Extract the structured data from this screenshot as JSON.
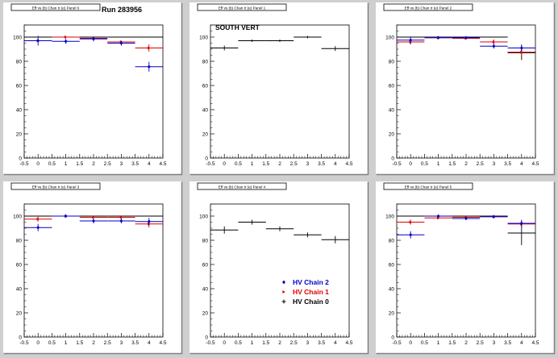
{
  "run_label": "Run 283956",
  "chart_data": [
    {
      "type": "scatter",
      "title": "Eff vs (b) Chan tr (e) Panel 0",
      "annotation": "",
      "xlim": [
        -0.5,
        4.5
      ],
      "ylim": [
        0,
        110
      ],
      "xticks": [
        "-0.5",
        "0",
        "0.5",
        "1",
        "1.5",
        "2",
        "2.5",
        "3",
        "3.5",
        "4",
        "4.5"
      ],
      "yticks": [
        "0",
        "20",
        "40",
        "60",
        "80",
        "100"
      ],
      "series": [
        {
          "color": "#000000",
          "x": [
            0,
            1,
            2,
            3,
            4
          ],
          "values": [
            100,
            100,
            100,
            100,
            100
          ],
          "err": [
            0,
            0,
            0,
            0,
            0
          ]
        },
        {
          "color": "#dd0000",
          "x": [
            0,
            1,
            2,
            3,
            4
          ],
          "values": [
            97,
            100,
            99,
            96,
            91
          ],
          "err": [
            1,
            1,
            1,
            1,
            3
          ]
        },
        {
          "color": "#0000cc",
          "x": [
            0,
            1,
            2,
            3,
            4
          ],
          "values": [
            97,
            96.5,
            98.5,
            95,
            75.5
          ],
          "err": [
            4,
            2,
            2,
            2,
            4
          ]
        }
      ]
    },
    {
      "type": "scatter",
      "title": "Eff vs (b) Chan tr (e) Panel 1",
      "annotation": "SOUTH VERT",
      "xlim": [
        -0.5,
        4.5
      ],
      "ylim": [
        0,
        110
      ],
      "xticks": [
        "-0.5",
        "0",
        "0.5",
        "1",
        "1.5",
        "2",
        "2.5",
        "3",
        "3.5",
        "4",
        "4.5"
      ],
      "yticks": [
        "0",
        "20",
        "40",
        "60",
        "80",
        "100"
      ],
      "series": [
        {
          "color": "#000000",
          "x": [
            0,
            1,
            2,
            3,
            4
          ],
          "values": [
            91,
            97,
            97,
            100,
            90.5
          ],
          "err": [
            2,
            1,
            1,
            1,
            2
          ]
        }
      ]
    },
    {
      "type": "scatter",
      "title": "Eff vs (b) Chan tr (e) Panel 2",
      "annotation": "",
      "xlim": [
        -0.5,
        4.5
      ],
      "ylim": [
        0,
        110
      ],
      "xticks": [
        "-0.5",
        "0",
        "0.5",
        "1",
        "1.5",
        "2",
        "2.5",
        "3",
        "3.5",
        "4",
        "4.5"
      ],
      "yticks": [
        "0",
        "20",
        "40",
        "60",
        "80",
        "100"
      ],
      "series": [
        {
          "color": "#000000",
          "x": [
            0,
            1,
            2,
            3,
            4
          ],
          "values": [
            100,
            100,
            100,
            100,
            87
          ],
          "err": [
            0,
            0,
            0,
            0,
            6
          ]
        },
        {
          "color": "#dd0000",
          "x": [
            0,
            1,
            2,
            3,
            4
          ],
          "values": [
            96,
            99.5,
            99,
            96,
            87.5
          ],
          "err": [
            2,
            1,
            1,
            2,
            3
          ]
        },
        {
          "color": "#0000cc",
          "x": [
            0,
            1,
            2,
            3,
            4
          ],
          "values": [
            97.5,
            99.5,
            99.5,
            92.5,
            91
          ],
          "err": [
            3,
            1,
            1,
            2,
            3
          ]
        }
      ]
    },
    {
      "type": "scatter",
      "title": "Eff vs (b) Chan tr (e) Panel 3",
      "annotation": "",
      "xlim": [
        -0.5,
        4.5
      ],
      "ylim": [
        0,
        110
      ],
      "xticks": [
        "-0.5",
        "0",
        "0.5",
        "1",
        "1.5",
        "2",
        "2.5",
        "3",
        "3.5",
        "4",
        "4.5"
      ],
      "yticks": [
        "0",
        "20",
        "40",
        "60",
        "80",
        "100"
      ],
      "series": [
        {
          "color": "#000000",
          "x": [
            0,
            1,
            2,
            3,
            4
          ],
          "values": [
            100,
            100,
            100,
            100,
            100
          ],
          "err": [
            0,
            0,
            0,
            0,
            0
          ]
        },
        {
          "color": "#dd0000",
          "x": [
            0,
            1,
            2,
            3,
            4
          ],
          "values": [
            97.5,
            100,
            99,
            99,
            93.5
          ],
          "err": [
            2,
            1,
            1,
            1,
            3
          ]
        },
        {
          "color": "#0000cc",
          "x": [
            0,
            1,
            2,
            3,
            4
          ],
          "values": [
            90.5,
            100,
            96,
            96,
            95.5
          ],
          "err": [
            3,
            1,
            2,
            2,
            3
          ]
        }
      ]
    },
    {
      "type": "scatter",
      "title": "Eff vs (b) Chan tr (e) Panel 4",
      "annotation": "",
      "xlim": [
        -0.5,
        4.5
      ],
      "ylim": [
        0,
        110
      ],
      "xticks": [
        "-0.5",
        "0",
        "0.5",
        "1",
        "1.5",
        "2",
        "2.5",
        "3",
        "3.5",
        "4",
        "4.5"
      ],
      "yticks": [
        "0",
        "20",
        "40",
        "60",
        "80",
        "100"
      ],
      "legend": [
        {
          "label": "HV Chain 2",
          "color": "#0000cc",
          "marker": "diamond"
        },
        {
          "label": "HV Chain 1",
          "color": "#dd0000",
          "marker": "arrow"
        },
        {
          "label": "HV Chain 0",
          "color": "#000000",
          "marker": "cross"
        }
      ],
      "series": [
        {
          "color": "#000000",
          "x": [
            0,
            1,
            2,
            3,
            4
          ],
          "values": [
            88.5,
            95,
            89.5,
            84.5,
            80.5
          ],
          "err": [
            3,
            2,
            2,
            2,
            3
          ]
        }
      ]
    },
    {
      "type": "scatter",
      "title": "Eff vs (b) Chan tr (e) Panel 5",
      "annotation": "",
      "xlim": [
        -0.5,
        4.5
      ],
      "ylim": [
        0,
        110
      ],
      "xticks": [
        "-0.5",
        "0",
        "0.5",
        "1",
        "1.5",
        "2",
        "2.5",
        "3",
        "3.5",
        "4",
        "4.5"
      ],
      "yticks": [
        "0",
        "20",
        "40",
        "60",
        "80",
        "100"
      ],
      "series": [
        {
          "color": "#000000",
          "x": [
            0,
            1,
            2,
            3,
            4
          ],
          "values": [
            100,
            100,
            100,
            100,
            86
          ],
          "err": [
            0,
            0,
            0,
            0,
            10
          ]
        },
        {
          "color": "#dd0000",
          "x": [
            0,
            1,
            2,
            3,
            4
          ],
          "values": [
            95,
            98.5,
            99,
            99.5,
            93.5
          ],
          "err": [
            2,
            1,
            1,
            1,
            2
          ]
        },
        {
          "color": "#0000cc",
          "x": [
            0,
            1,
            2,
            3,
            4
          ],
          "values": [
            84.5,
            100,
            98,
            99.5,
            94
          ],
          "err": [
            3,
            1,
            1,
            1,
            3
          ]
        }
      ]
    }
  ]
}
